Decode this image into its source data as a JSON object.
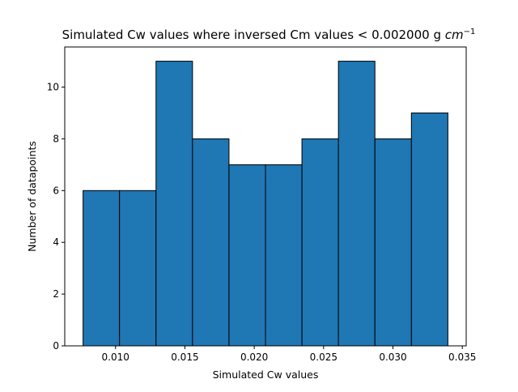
{
  "chart_data": {
    "type": "bar",
    "title": "Simulated Cw values where inversed Cm values < 0.002000 g",
    "title_unit_base": "cm",
    "title_unit_exp": "−1",
    "xlabel": "Simulated Cw values",
    "ylabel": "Number of datapoints",
    "bin_edges": [
      0.00766,
      0.01029,
      0.01292,
      0.01555,
      0.01818,
      0.02081,
      0.02344,
      0.02607,
      0.0287,
      0.03133,
      0.03396
    ],
    "values": [
      6,
      6,
      11,
      8,
      7,
      7,
      8,
      11,
      8,
      9
    ],
    "xlim": [
      0.00634,
      0.03528
    ],
    "ylim": [
      0,
      11.55
    ],
    "x_ticks": [
      0.01,
      0.015,
      0.02,
      0.025,
      0.03,
      0.035
    ],
    "x_tick_labels": [
      "0.010",
      "0.015",
      "0.020",
      "0.025",
      "0.030",
      "0.035"
    ],
    "y_ticks": [
      0,
      2,
      4,
      6,
      8,
      10
    ],
    "y_tick_labels": [
      "0",
      "2",
      "4",
      "6",
      "8",
      "10"
    ],
    "bar_color": "#1f77b4",
    "edge_color": "#000000",
    "grid": false,
    "legend": "none"
  }
}
